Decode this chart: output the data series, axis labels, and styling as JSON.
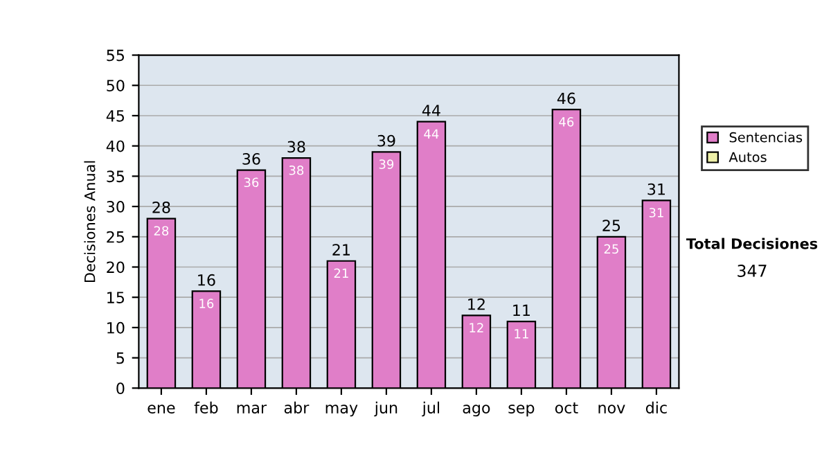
{
  "chart_data": {
    "type": "bar",
    "stacked": true,
    "categories": [
      "ene",
      "feb",
      "mar",
      "abr",
      "may",
      "jun",
      "jul",
      "ago",
      "sep",
      "oct",
      "nov",
      "dic"
    ],
    "series": [
      {
        "name": "Sentencias",
        "color": "#e07ec8",
        "values": [
          28,
          16,
          36,
          38,
          21,
          39,
          44,
          12,
          11,
          46,
          25,
          31
        ],
        "value_labels": [
          "28",
          "16",
          "36",
          "38",
          "21",
          "39",
          "44",
          "12",
          "11",
          "46",
          "25",
          "31"
        ]
      },
      {
        "name": "Autos",
        "color": "#eef0a8",
        "values": [
          null,
          null,
          null,
          null,
          null,
          null,
          null,
          null,
          null,
          null,
          null,
          null
        ]
      }
    ],
    "totals": [
      "28",
      "16",
      "36",
      "38",
      "21",
      "39",
      "44",
      "12",
      "11",
      "46",
      "25",
      "31"
    ],
    "ylabel": "Decisiones Anual",
    "ylim": [
      0,
      55
    ],
    "yticks": [
      0,
      5,
      10,
      15,
      20,
      25,
      30,
      35,
      40,
      45,
      50,
      55
    ],
    "grid": "y",
    "legend": "right",
    "annotations": [
      "Total Decisiones",
      "347"
    ]
  }
}
